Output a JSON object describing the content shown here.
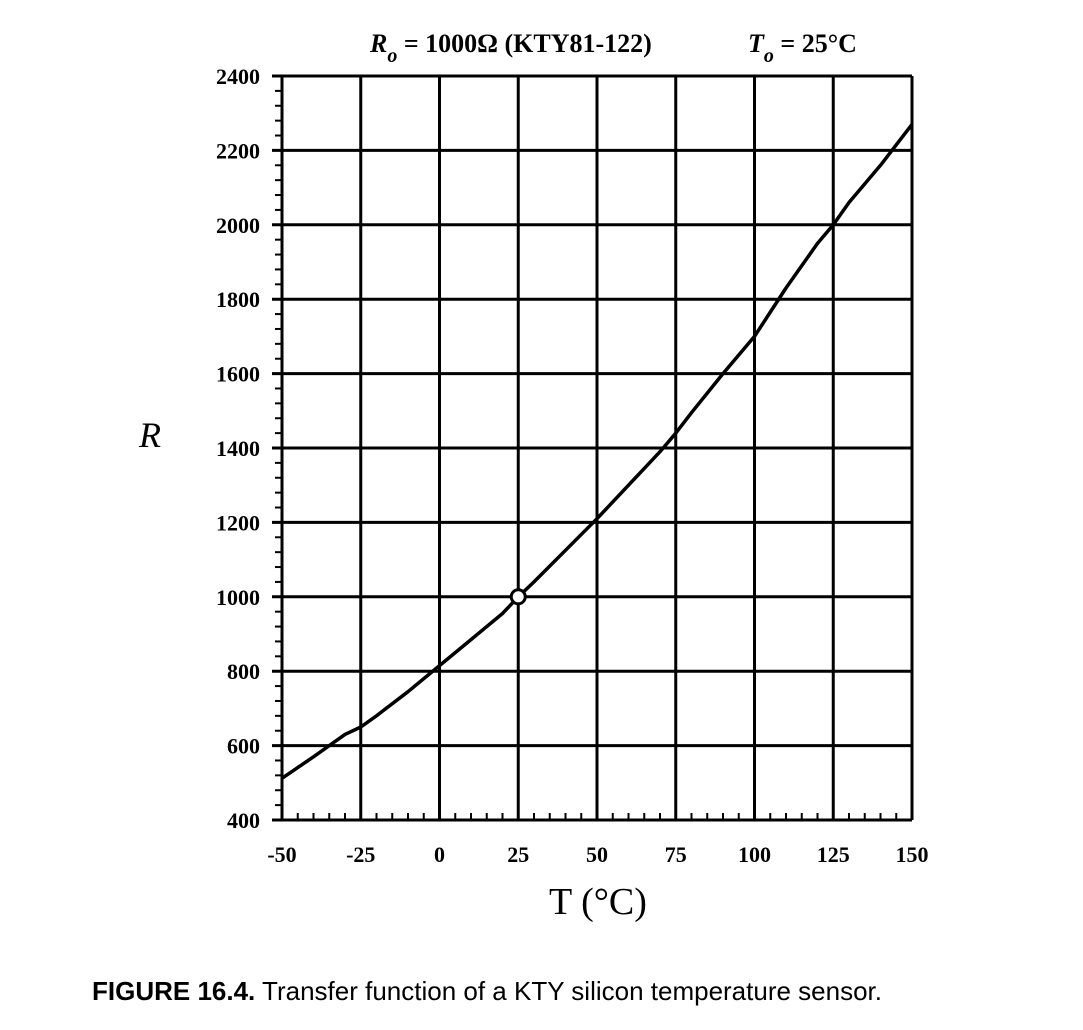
{
  "chart_data": {
    "type": "line",
    "title_parts": {
      "r_symbol": "R",
      "r_sub": "o",
      "r_rest": " = 1000Ω (KTY81-122)",
      "t_symbol": "T",
      "t_sub": "o",
      "t_rest": " = 25°C"
    },
    "xlabel": "T  (°C)",
    "ylabel": "R",
    "xlim": [
      -50,
      150
    ],
    "ylim": [
      400,
      2400
    ],
    "x_ticks": [
      -50,
      -25,
      0,
      25,
      50,
      75,
      100,
      125,
      150
    ],
    "y_ticks": [
      400,
      600,
      800,
      1000,
      1200,
      1400,
      1600,
      1800,
      2000,
      2200,
      2400
    ],
    "x_tick_labels": [
      "-50",
      "-25",
      "0",
      "25",
      "50",
      "75",
      "100",
      "125",
      "150"
    ],
    "y_tick_labels": [
      "400",
      "600",
      "800",
      "1000",
      "1200",
      "1400",
      "1600",
      "1800",
      "2000",
      "2200",
      "2400"
    ],
    "grid": true,
    "series": [
      {
        "x": [
          -50,
          -40,
          -30,
          -25,
          -20,
          -10,
          0,
          10,
          20,
          25,
          30,
          40,
          50,
          60,
          70,
          75,
          80,
          90,
          100,
          110,
          120,
          125,
          130,
          140,
          150
        ],
        "y": [
          512,
          570,
          630,
          650,
          680,
          745,
          815,
          885,
          955,
          1000,
          1040,
          1125,
          1210,
          1300,
          1390,
          1440,
          1495,
          1600,
          1700,
          1830,
          1950,
          2000,
          2060,
          2160,
          2270
        ]
      }
    ],
    "marker": {
      "x": 25,
      "y": 1000
    }
  },
  "caption": {
    "lead": "FIGURE 16.4.",
    "text": " Transfer function of a KTY silicon temperature sensor."
  }
}
